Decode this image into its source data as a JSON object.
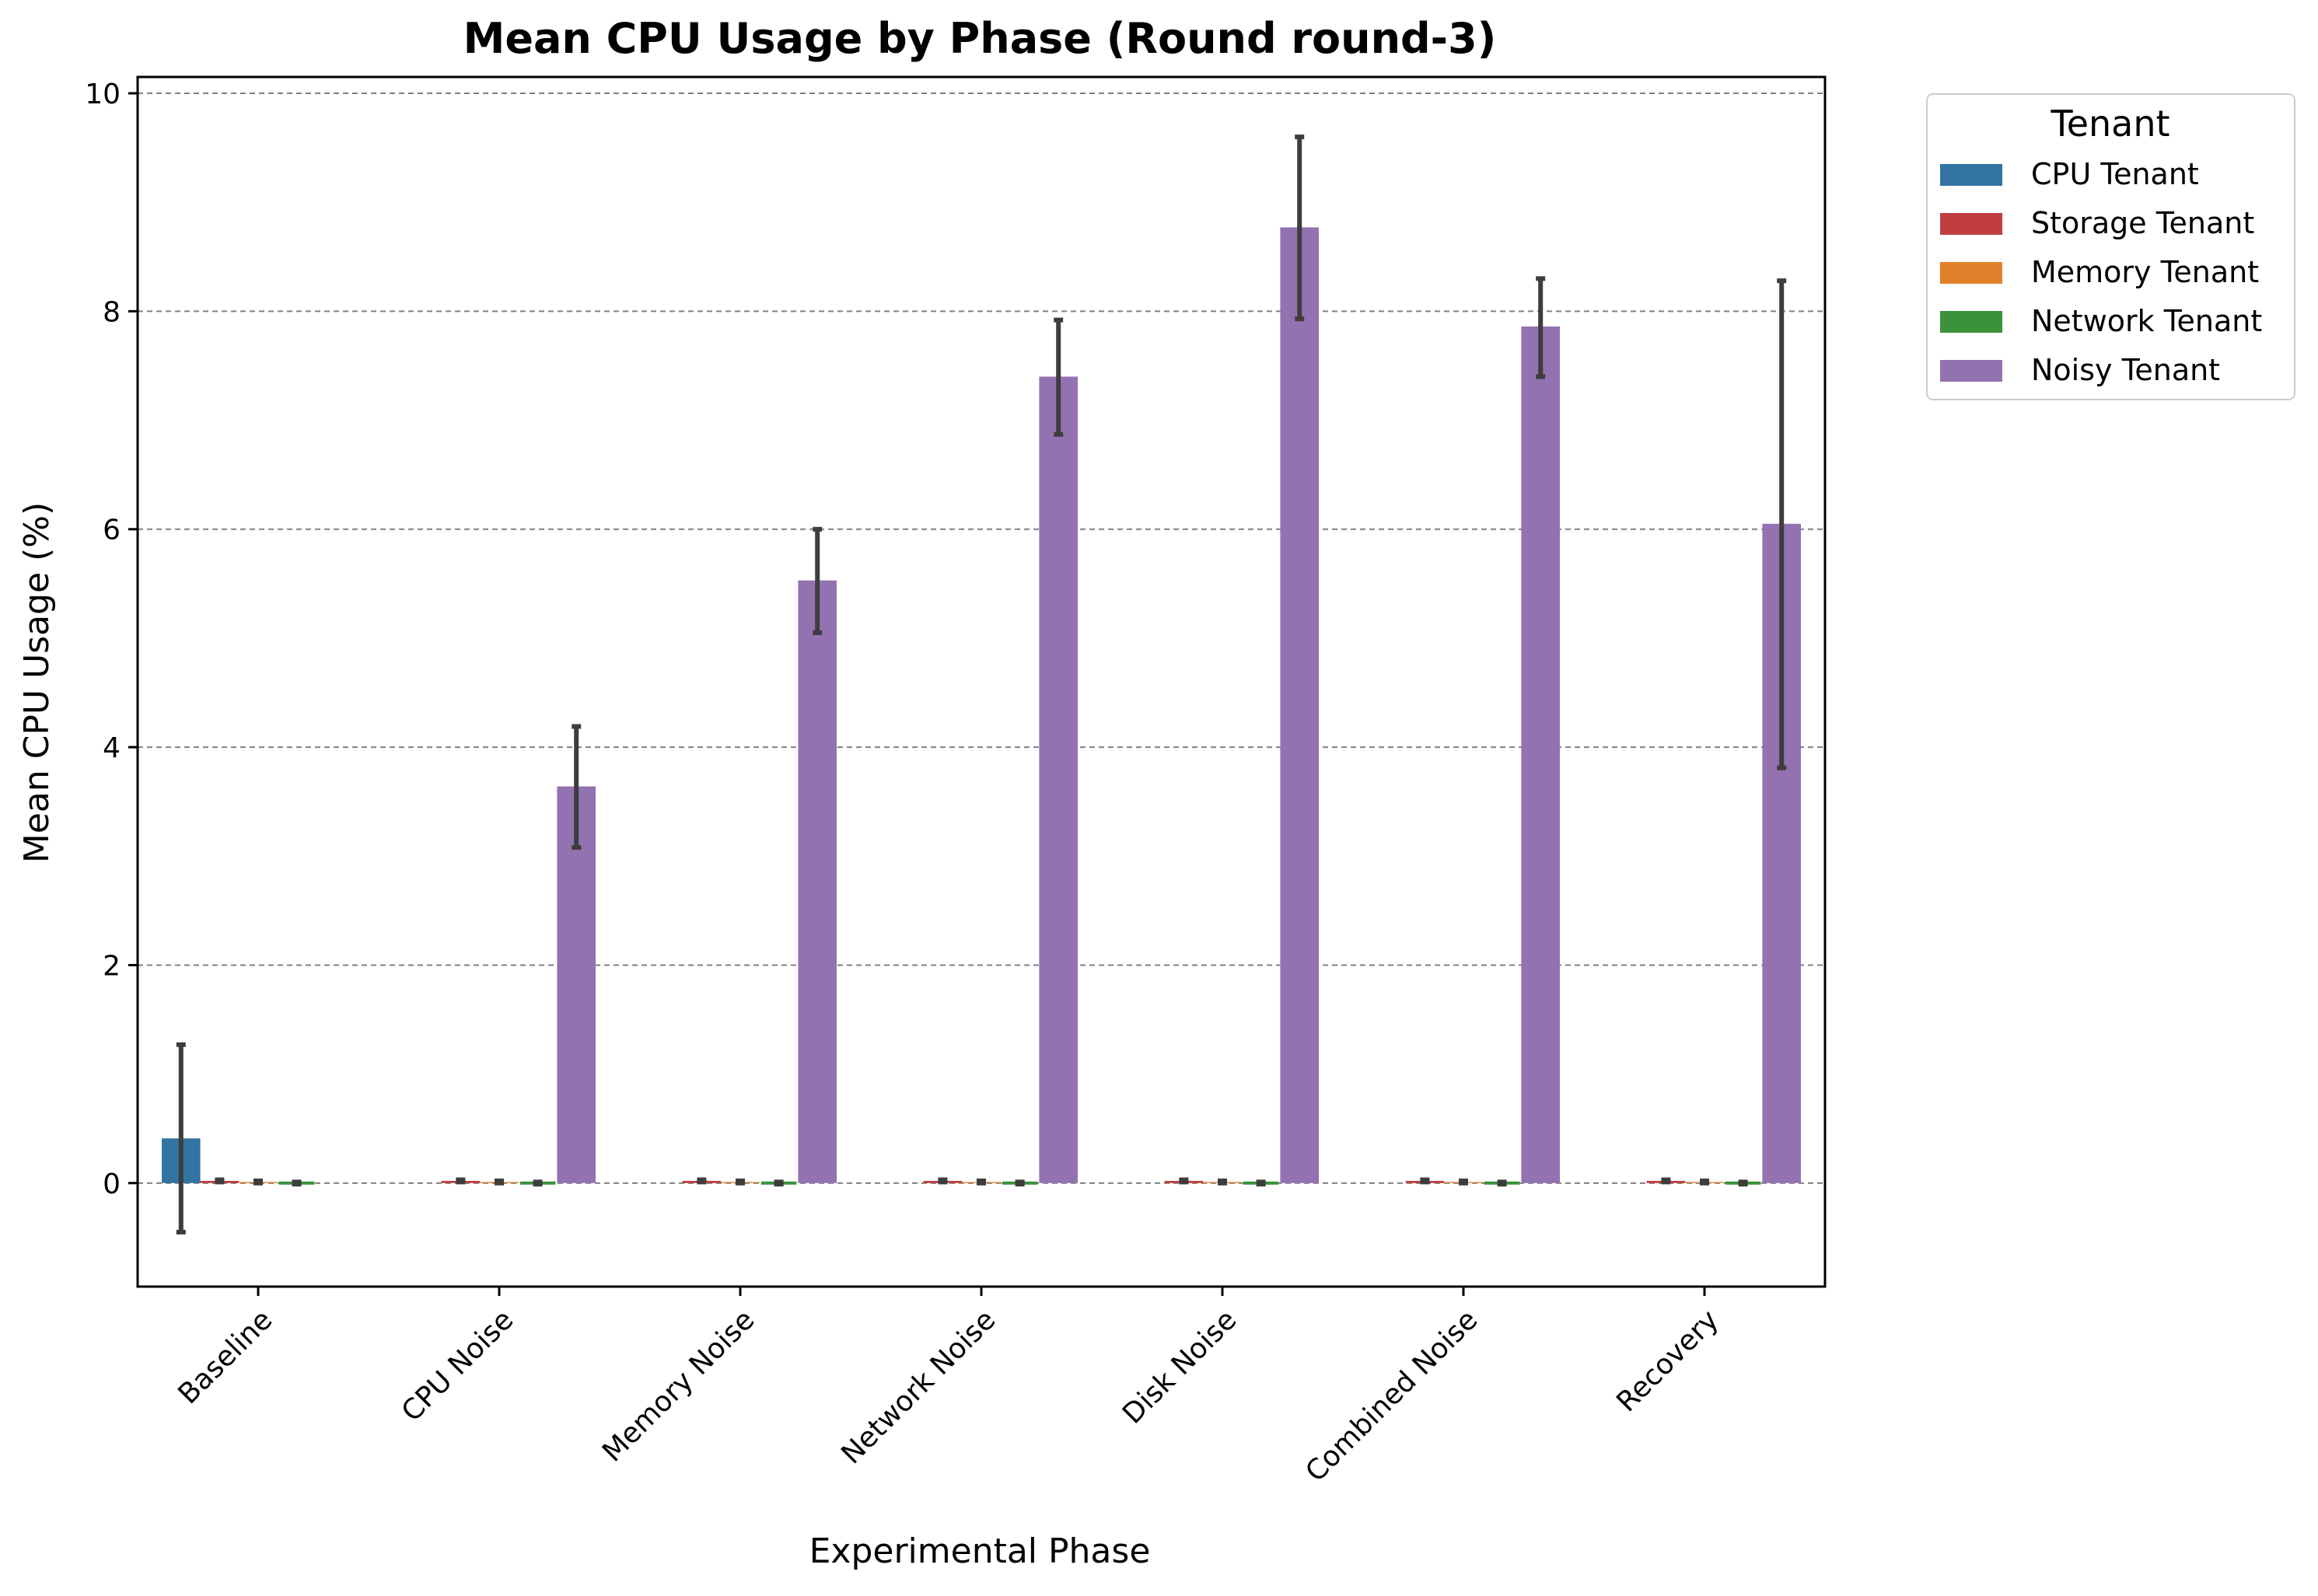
{
  "chart_data": {
    "type": "bar",
    "title": "Mean CPU Usage by Phase (Round round-3)",
    "xlabel": "Experimental Phase",
    "ylabel": "Mean CPU Usage (%)",
    "ylim": [
      -0.95,
      10.15
    ],
    "yticks": [
      0,
      2,
      4,
      6,
      8,
      10
    ],
    "grid": "y-dashed",
    "legend": {
      "title": "Tenant",
      "placement": "outside-top-right"
    },
    "categories": [
      "Baseline",
      "CPU Noise",
      "Memory Noise",
      "Network Noise",
      "Disk Noise",
      "Combined Noise",
      "Recovery"
    ],
    "series": [
      {
        "name": "CPU Tenant",
        "color": "#3274a1",
        "values": [
          0.41,
          0,
          0,
          0,
          0,
          0,
          0
        ],
        "err_low": [
          -0.45,
          0,
          0,
          0,
          0,
          0,
          0
        ],
        "err_high": [
          1.27,
          0,
          0,
          0,
          0,
          0,
          0
        ]
      },
      {
        "name": "Storage Tenant",
        "color": "#c03d3e",
        "values": [
          0.02,
          0.02,
          0.02,
          0.02,
          0.02,
          0.02,
          0.02
        ],
        "err_low": [
          0.01,
          0.01,
          0.01,
          0.01,
          0.01,
          0.01,
          0.01
        ],
        "err_high": [
          0.03,
          0.03,
          0.03,
          0.03,
          0.03,
          0.03,
          0.03
        ]
      },
      {
        "name": "Memory Tenant",
        "color": "#e1812c",
        "values": [
          0.01,
          0.01,
          0.01,
          0.01,
          0.01,
          0.01,
          0.01
        ],
        "err_low": [
          0.0,
          0.0,
          0.0,
          0.0,
          0.0,
          0.0,
          0.0
        ],
        "err_high": [
          0.02,
          0.02,
          0.02,
          0.02,
          0.02,
          0.02,
          0.02
        ]
      },
      {
        "name": "Network Tenant",
        "color": "#3a923a",
        "values": [
          0.0,
          0.0,
          0.0,
          0.0,
          0.0,
          0.0,
          0.0
        ],
        "err_low": [
          -0.01,
          -0.01,
          -0.01,
          -0.01,
          -0.01,
          -0.01,
          -0.01
        ],
        "err_high": [
          0.01,
          0.01,
          0.01,
          0.01,
          0.01,
          0.01,
          0.01
        ]
      },
      {
        "name": "Noisy Tenant",
        "color": "#9372b2",
        "values": [
          0,
          3.64,
          5.53,
          7.4,
          8.77,
          7.86,
          6.05
        ],
        "err_low": [
          0,
          3.08,
          5.05,
          6.87,
          7.93,
          7.4,
          3.81
        ],
        "err_high": [
          0,
          4.19,
          6.0,
          7.92,
          9.6,
          8.3,
          8.28
        ]
      }
    ],
    "bar_slots": [
      [
        "CPU Tenant",
        "Storage Tenant",
        "Memory Tenant",
        "Network Tenant"
      ],
      [
        "Network Tenant",
        "Storage Tenant",
        "Memory Tenant",
        "Network Tenant",
        "Noisy Tenant"
      ],
      [
        "Network Tenant",
        "Storage Tenant",
        "Memory Tenant",
        "Network Tenant",
        "Noisy Tenant"
      ],
      [
        "Network Tenant",
        "Storage Tenant",
        "Memory Tenant",
        "Network Tenant",
        "Noisy Tenant"
      ],
      [
        "Network Tenant",
        "Storage Tenant",
        "Memory Tenant",
        "Network Tenant",
        "Noisy Tenant"
      ],
      [
        "Network Tenant",
        "Storage Tenant",
        "Memory Tenant",
        "Network Tenant",
        "Noisy Tenant"
      ],
      [
        "Network Tenant",
        "Storage Tenant",
        "Memory Tenant",
        "Network Tenant",
        "Noisy Tenant"
      ]
    ]
  }
}
